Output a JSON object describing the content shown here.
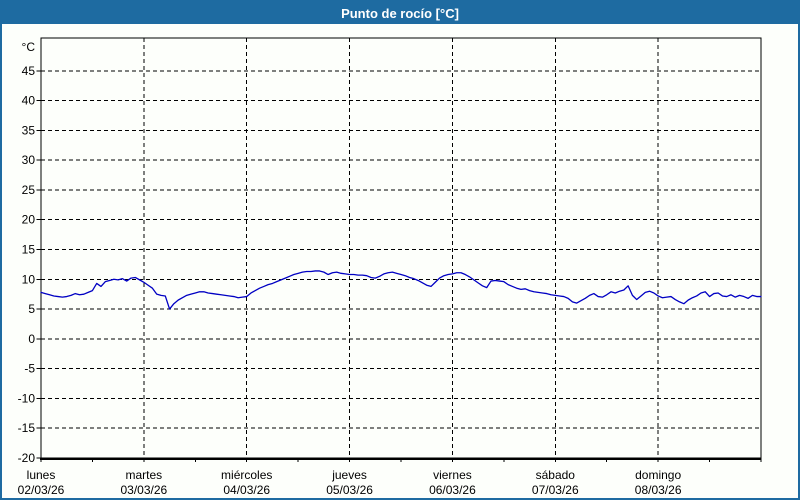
{
  "header": {
    "title": "Punto de rocío [°C]"
  },
  "colors": {
    "header_bg": "#1e6ba1",
    "window_border": "#1e6ba1",
    "page_bg": "#fdfffb",
    "plot_bg": "#fdfffb",
    "grid": "#000000",
    "axis": "#000000",
    "text": "#000000",
    "title_text": "#ffffff",
    "line": "#0000c3"
  },
  "chart_data": {
    "type": "line",
    "title": "Punto de rocío [°C]",
    "ylabel": "°C",
    "unit_label": "°C",
    "ylim": [
      -20,
      50.5
    ],
    "yticks": [
      45,
      40,
      35,
      30,
      25,
      20,
      15,
      10,
      5,
      0,
      -5,
      -10,
      -15,
      -20
    ],
    "grid": "dashed",
    "legend": "none",
    "x_days": [
      {
        "name": "lunes",
        "date": "02/03/26"
      },
      {
        "name": "martes",
        "date": "03/03/26"
      },
      {
        "name": "miércoles",
        "date": "04/03/26"
      },
      {
        "name": "jueves",
        "date": "05/03/26"
      },
      {
        "name": "viernes",
        "date": "06/03/26"
      },
      {
        "name": "sábado",
        "date": "07/03/26"
      },
      {
        "name": "domingo",
        "date": "08/03/26"
      }
    ],
    "x_minor_tick_hours": 12,
    "series": [
      {
        "name": "Punto de rocío",
        "sampling_hours": 1,
        "values": [
          7.8,
          7.6,
          7.4,
          7.2,
          7.1,
          7.0,
          7.1,
          7.3,
          7.6,
          7.4,
          7.5,
          7.8,
          8.1,
          9.3,
          8.8,
          9.6,
          9.8,
          10.0,
          9.9,
          10.1,
          9.7,
          10.2,
          10.3,
          9.9,
          9.5,
          9.0,
          8.5,
          7.5,
          7.3,
          7.2,
          5.0,
          5.9,
          6.5,
          6.9,
          7.3,
          7.5,
          7.7,
          7.9,
          7.9,
          7.7,
          7.6,
          7.5,
          7.4,
          7.3,
          7.2,
          7.1,
          6.9,
          7.0,
          7.1,
          7.7,
          8.1,
          8.5,
          8.8,
          9.1,
          9.3,
          9.6,
          9.9,
          10.2,
          10.5,
          10.8,
          11.0,
          11.2,
          11.3,
          11.3,
          11.4,
          11.4,
          11.2,
          10.8,
          11.1,
          11.2,
          11.0,
          10.9,
          10.8,
          10.8,
          10.7,
          10.7,
          10.6,
          10.3,
          10.2,
          10.5,
          10.9,
          11.1,
          11.2,
          11.0,
          10.8,
          10.6,
          10.3,
          10.1,
          9.8,
          9.4,
          9.0,
          8.8,
          9.5,
          10.2,
          10.6,
          10.8,
          10.9,
          11.1,
          11.1,
          10.8,
          10.4,
          9.9,
          9.4,
          8.9,
          8.6,
          9.7,
          9.8,
          9.7,
          9.6,
          9.1,
          8.8,
          8.5,
          8.3,
          8.4,
          8.1,
          7.9,
          7.8,
          7.7,
          7.6,
          7.4,
          7.3,
          7.2,
          7.1,
          6.8,
          6.2,
          6.0,
          6.4,
          6.8,
          7.3,
          7.6,
          7.1,
          7.0,
          7.4,
          7.9,
          7.7,
          8.0,
          8.2,
          8.9,
          7.3,
          6.6,
          7.2,
          7.8,
          8.0,
          7.7,
          7.2,
          6.9,
          7.0,
          7.1,
          6.6,
          6.2,
          5.9,
          6.5,
          6.9,
          7.2,
          7.7,
          7.9,
          7.1,
          7.6,
          7.7,
          7.2,
          7.1,
          7.4,
          7.0,
          7.3,
          7.1,
          6.8,
          7.3,
          7.1,
          7.1
        ]
      }
    ]
  }
}
